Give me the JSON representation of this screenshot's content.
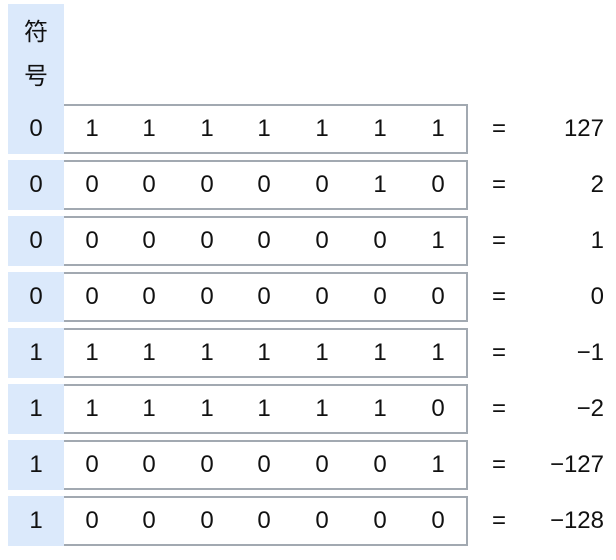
{
  "header": {
    "char1": "符",
    "char2": "号"
  },
  "equals": "=",
  "rows": [
    {
      "sign": "0",
      "bits": [
        "1",
        "1",
        "1",
        "1",
        "1",
        "1",
        "1"
      ],
      "value": "127"
    },
    {
      "sign": "0",
      "bits": [
        "0",
        "0",
        "0",
        "0",
        "0",
        "1",
        "0"
      ],
      "value": "2"
    },
    {
      "sign": "0",
      "bits": [
        "0",
        "0",
        "0",
        "0",
        "0",
        "0",
        "1"
      ],
      "value": "1"
    },
    {
      "sign": "0",
      "bits": [
        "0",
        "0",
        "0",
        "0",
        "0",
        "0",
        "0"
      ],
      "value": "0"
    },
    {
      "sign": "1",
      "bits": [
        "1",
        "1",
        "1",
        "1",
        "1",
        "1",
        "1"
      ],
      "value": "−1"
    },
    {
      "sign": "1",
      "bits": [
        "1",
        "1",
        "1",
        "1",
        "1",
        "1",
        "0"
      ],
      "value": "−2"
    },
    {
      "sign": "1",
      "bits": [
        "0",
        "0",
        "0",
        "0",
        "0",
        "0",
        "1"
      ],
      "value": "−127"
    },
    {
      "sign": "1",
      "bits": [
        "0",
        "0",
        "0",
        "0",
        "0",
        "0",
        "0"
      ],
      "value": "−128"
    }
  ]
}
